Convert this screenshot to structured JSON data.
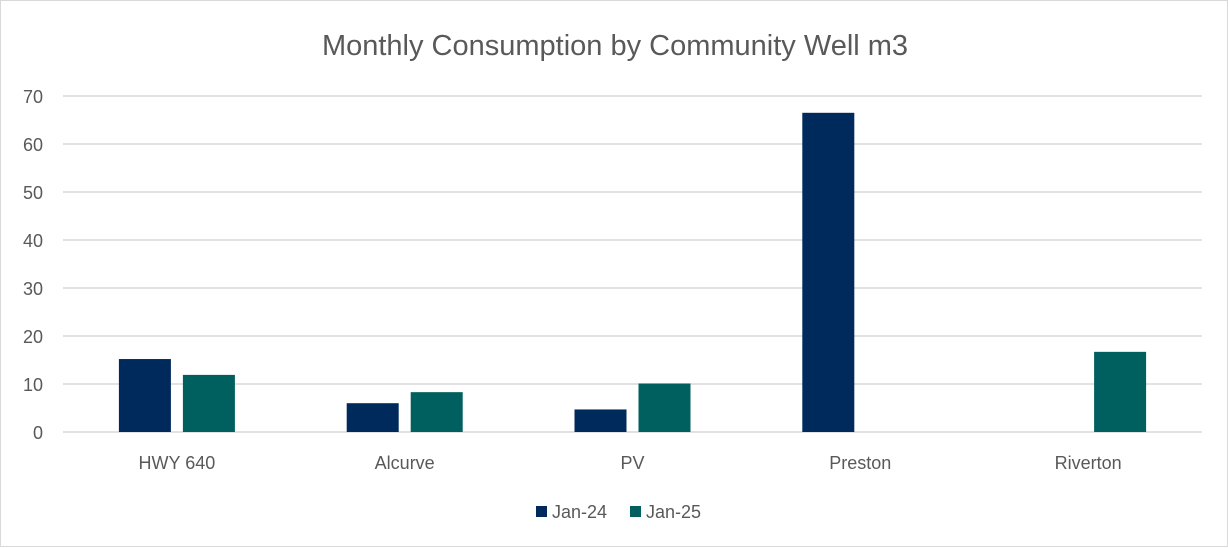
{
  "chart_data": {
    "type": "bar",
    "title": "Monthly Consumption by Community Well m3",
    "categories": [
      "HWY 640",
      "Alcurve",
      "PV",
      "Preston",
      "Riverton"
    ],
    "series": [
      {
        "name": "Jan-24",
        "color": "#002a5c",
        "values": [
          15.2,
          6.0,
          4.7,
          66.5,
          null
        ]
      },
      {
        "name": "Jan-25",
        "color": "#005f5f",
        "values": [
          11.9,
          8.3,
          10.1,
          null,
          16.7
        ]
      }
    ],
    "ylim": [
      0,
      70
    ],
    "yticks": [
      0,
      10,
      20,
      30,
      40,
      50,
      60,
      70
    ],
    "grid": true,
    "legend": "bottom-center",
    "xlabel": "",
    "ylabel": ""
  }
}
